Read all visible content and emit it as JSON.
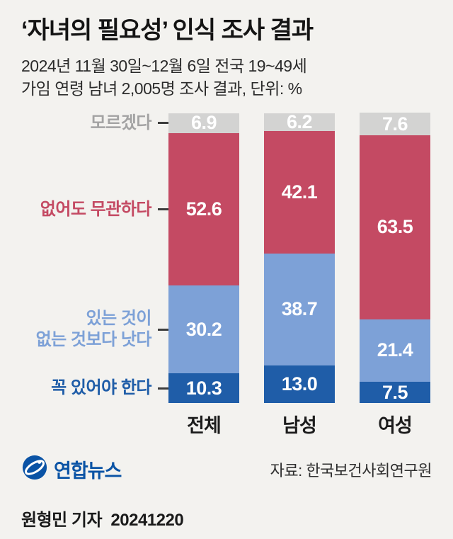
{
  "header": {
    "title": "‘자녀의 필요성’ 인식 조사 결과",
    "subtitle_line1": "2024년 11월 30일~12월 6일 전국 19~49세",
    "subtitle_line2": "가임 연령 남녀 2,005명 조사 결과, 단위: %"
  },
  "chart_data": {
    "type": "bar",
    "stacked": true,
    "unit": "%",
    "categories": [
      "전체",
      "남성",
      "여성"
    ],
    "series": [
      {
        "name": "꼭 있어야 한다",
        "color": "#1f5da8",
        "values": [
          10.3,
          13.0,
          7.5
        ]
      },
      {
        "name": "있는 것이 없는 것보다 낫다",
        "color": "#7da1d7",
        "values": [
          30.2,
          38.7,
          21.4
        ]
      },
      {
        "name": "없어도 무관하다",
        "color": "#c44a63",
        "values": [
          52.6,
          42.1,
          63.5
        ]
      },
      {
        "name": "모르겠다",
        "color": "#d3d3d2",
        "values": [
          6.9,
          6.2,
          7.6
        ]
      }
    ],
    "ylim": [
      0,
      100
    ],
    "legend_position": "left",
    "value_labels": true,
    "title": "‘자녀의 필요성’ 인식 조사 결과"
  },
  "left_labels": [
    {
      "lines": [
        "모르겠다"
      ],
      "color": "#a3a3a3"
    },
    {
      "lines": [
        "없어도 무관하다"
      ],
      "color": "#c44a63"
    },
    {
      "lines": [
        "있는 것이",
        "없는 것보다 낫다"
      ],
      "color": "#7da1d7"
    },
    {
      "lines": [
        "꼭 있어야 한다"
      ],
      "color": "#1f5da8"
    }
  ],
  "footer": {
    "logo_text": "연합뉴스",
    "source": "자료: 한국보건사회연구원",
    "credit": "원형민 기자  20241220",
    "logo_color": "#0a53a5"
  }
}
